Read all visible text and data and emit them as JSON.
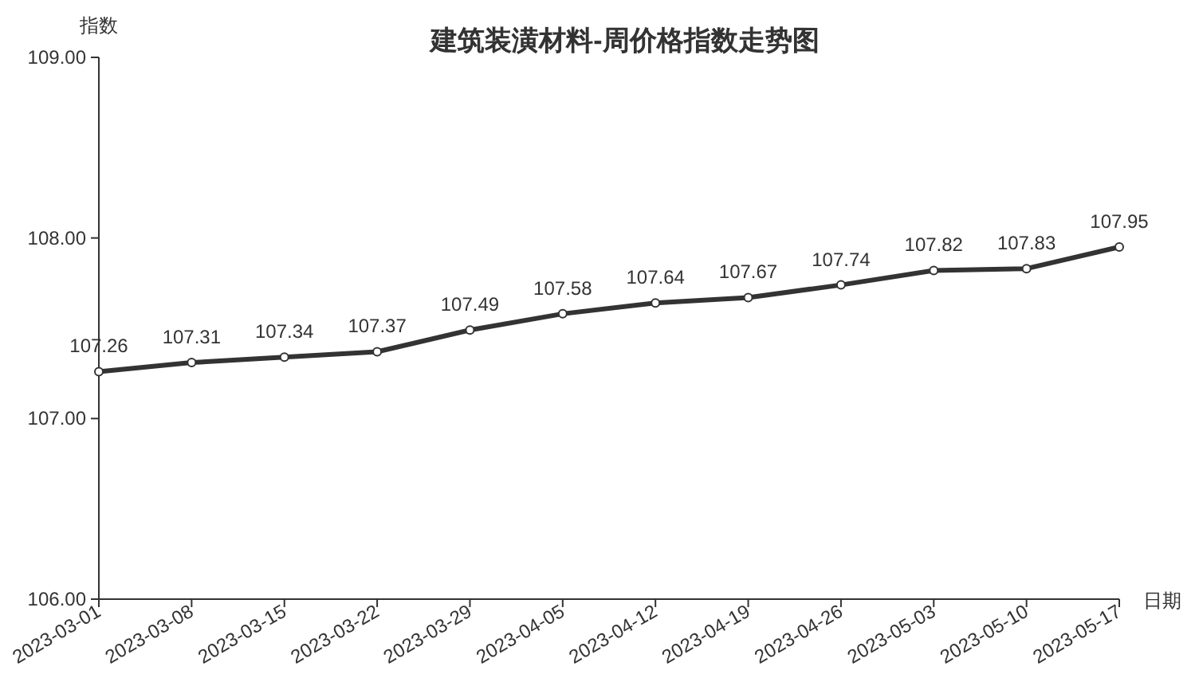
{
  "chart_data": {
    "type": "line",
    "title": "建筑装潢材料-周价格指数走势图",
    "xlabel": "日期",
    "ylabel": "指数",
    "categories": [
      "2023-03-01",
      "2023-03-08",
      "2023-03-15",
      "2023-03-22",
      "2023-03-29",
      "2023-04-05",
      "2023-04-12",
      "2023-04-19",
      "2023-04-26",
      "2023-05-03",
      "2023-05-10",
      "2023-05-17"
    ],
    "series": [
      {
        "color": "#333333",
        "values": [
          107.26,
          107.31,
          107.34,
          107.37,
          107.49,
          107.58,
          107.64,
          107.67,
          107.74,
          107.82,
          107.83,
          107.95
        ]
      }
    ],
    "ylim": [
      106,
      109
    ],
    "yticks": [
      {
        "value": 106,
        "label": "106.00"
      },
      {
        "value": 107,
        "label": "107.00"
      },
      {
        "value": 108,
        "label": "108.00"
      },
      {
        "value": 109,
        "label": "109.00"
      }
    ],
    "data_labels": true,
    "marker": "circle",
    "line_style": "solid"
  }
}
